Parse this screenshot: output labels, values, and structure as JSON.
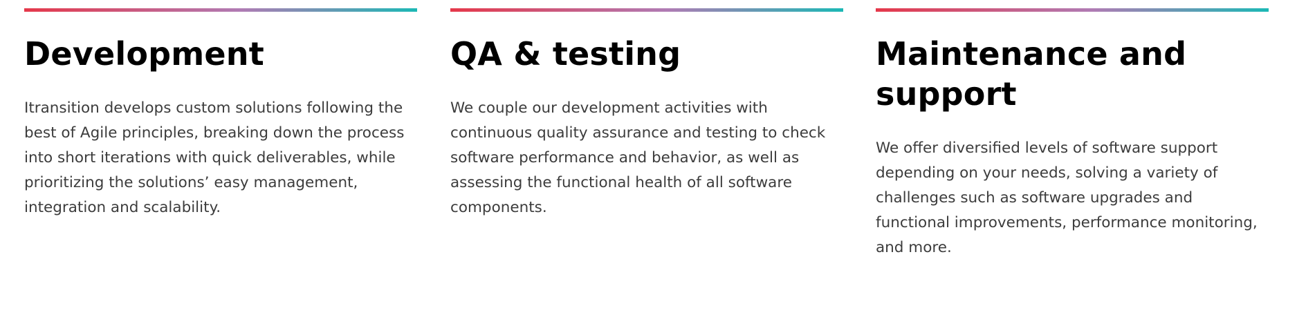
{
  "columns": [
    {
      "title": "Development",
      "text": "Itransition develops custom solutions following the best of Agile principles, breaking down the process into short iterations with quick deliverables, while prioritizing the solutions’ easy management, integration and scalability."
    },
    {
      "title": "QA & testing",
      "text": "We couple our development activities with continuous quality assurance and testing to check software performance and behavior, as well as assessing the functional health of all software components."
    },
    {
      "title": "Maintenance and support",
      "text": "We offer diversified levels of software support depending on your needs, solving a variety of challenges such as software upgrades and functional improvements, performance monitoring, and more."
    }
  ],
  "colors": {
    "gradient_start": "#e5384a",
    "gradient_mid": "#b07bb4",
    "gradient_end": "#1cb8b5",
    "title": "#000000",
    "body_text": "#3c3c3c"
  }
}
